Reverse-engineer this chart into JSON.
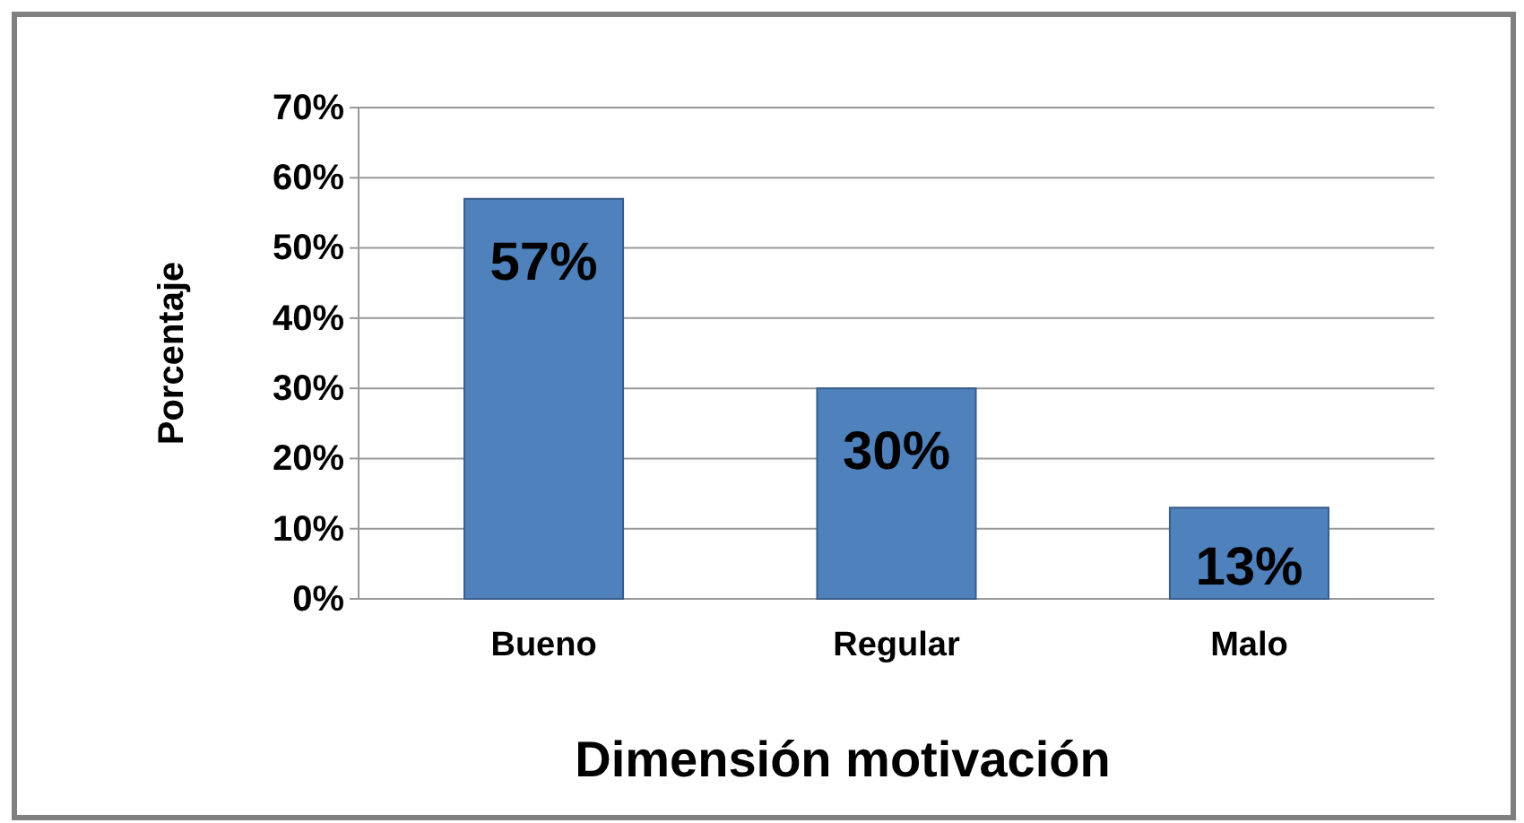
{
  "chart_data": {
    "type": "bar",
    "xlabel": "Dimensión motivación",
    "ylabel": "Porcentaje",
    "categories": [
      "Bueno",
      "Regular",
      "Malo"
    ],
    "values": [
      57,
      30,
      13
    ],
    "color": "#4f81bd",
    "value_labels": [
      "57%",
      "30%",
      "13%"
    ],
    "ylim": [
      0,
      70
    ],
    "yticks": [
      {
        "value": 0,
        "label": "0%"
      },
      {
        "value": 10,
        "label": "10%"
      },
      {
        "value": 20,
        "label": "20%"
      },
      {
        "value": 30,
        "label": "30%"
      },
      {
        "value": 40,
        "label": "40%"
      },
      {
        "value": 50,
        "label": "50%"
      },
      {
        "value": 60,
        "label": "60%"
      },
      {
        "value": 70,
        "label": "70%"
      }
    ],
    "grid": "y"
  }
}
